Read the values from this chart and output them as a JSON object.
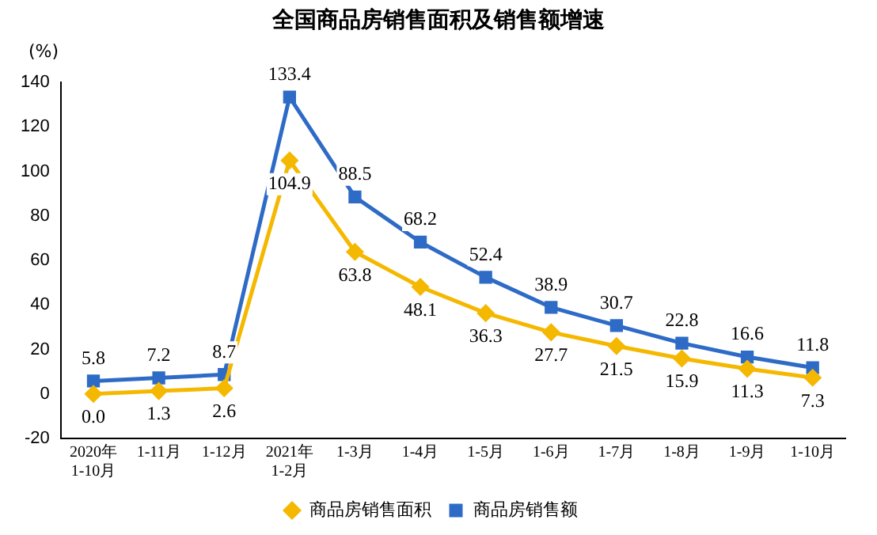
{
  "chart_data": {
    "type": "line",
    "title": "全国商品房销售面积及销售额增速",
    "ylabel": "(%)",
    "categories": [
      "2020年\n1-10月",
      "1-11月",
      "1-12月",
      "2021年\n1-2月",
      "1-3月",
      "1-4月",
      "1-5月",
      "1-6月",
      "1-7月",
      "1-8月",
      "1-9月",
      "1-10月"
    ],
    "series": [
      {
        "name": "商品房销售面积",
        "color": "#f5b800",
        "marker": "diamond",
        "values": [
          0.0,
          1.3,
          2.6,
          104.9,
          63.8,
          48.1,
          36.3,
          27.7,
          21.5,
          15.9,
          11.3,
          7.3
        ],
        "value_labels": [
          "0.0",
          "1.3",
          "2.6",
          "104.9",
          "63.8",
          "48.1",
          "36.3",
          "27.7",
          "21.5",
          "15.9",
          "11.3",
          "7.3"
        ]
      },
      {
        "name": "商品房销售额",
        "color": "#2e6bc6",
        "marker": "square",
        "values": [
          5.8,
          7.2,
          8.7,
          133.4,
          88.5,
          68.2,
          52.4,
          38.9,
          30.7,
          22.8,
          16.6,
          11.8
        ],
        "value_labels": [
          "5.8",
          "7.2",
          "8.7",
          "133.4",
          "88.5",
          "68.2",
          "52.4",
          "38.9",
          "30.7",
          "22.8",
          "16.6",
          "11.8"
        ]
      }
    ],
    "ylim": [
      -20,
      140
    ],
    "yticks": [
      -20,
      0,
      20,
      40,
      60,
      80,
      100,
      120,
      140
    ],
    "grid": false,
    "legend": "bottom",
    "line_style": "solid"
  }
}
